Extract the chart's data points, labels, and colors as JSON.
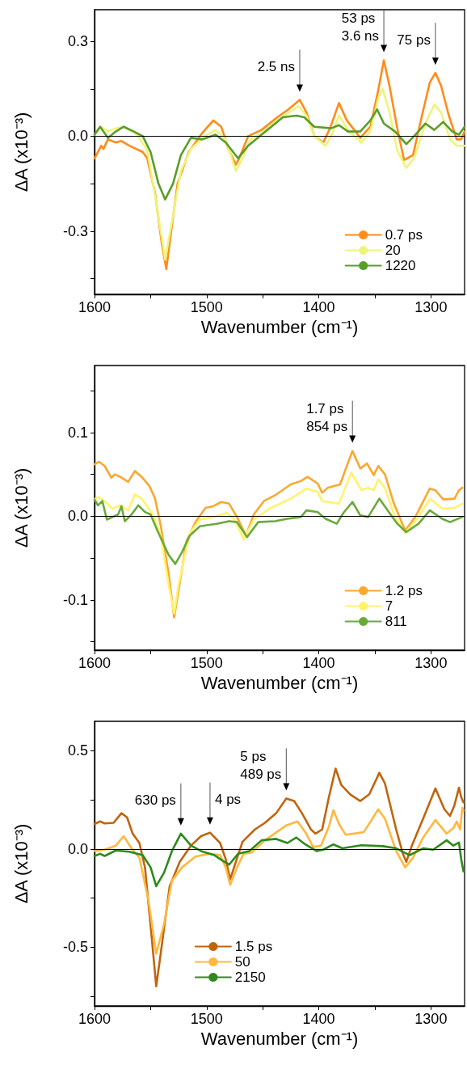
{
  "chart_data": [
    {
      "type": "line",
      "xlabel": "Wavenumber (cm⁻¹)",
      "ylabel": "ΔA (x10⁻³)",
      "xlim": [
        1600,
        1270
      ],
      "ylim": [
        -0.5,
        0.4
      ],
      "xticks": [
        1600,
        {
          "value": 1550,
          "label": null
        },
        1500,
        {
          "value": 1450,
          "label": null
        },
        1400,
        {
          "value": 1350,
          "label": null
        },
        1300
      ],
      "yticks": [
        {
          "value": -0.45,
          "label": null
        },
        -0.3,
        {
          "value": -0.15,
          "label": null
        },
        {
          "value": 0,
          "label": "0.0"
        },
        {
          "value": 0.15,
          "label": null
        },
        0.3
      ],
      "legend": "bottom right",
      "marker": "none",
      "line_style": "solid",
      "ref_lines": [
        {
          "axis": "y",
          "value": 0,
          "color": "#000000"
        }
      ],
      "annotations": [
        {
          "text": "2.5 ns",
          "x": 1417,
          "y": 0.115
        },
        {
          "text": "53 ps\n3.6 ns",
          "x": 1342,
          "y": 0.24
        },
        {
          "text": "75 ps",
          "x": 1296,
          "y": 0.2
        }
      ],
      "series": [
        {
          "name": "0.7 ps",
          "color": "#ff8c1a",
          "x": [
            1600,
            1594,
            1592,
            1588,
            1581,
            1576,
            1569,
            1557,
            1553,
            1546,
            1540,
            1536,
            1532,
            1526,
            1516,
            1504,
            1494,
            1487,
            1480,
            1474,
            1471,
            1463,
            1451,
            1437,
            1427,
            1417,
            1411,
            1404,
            1396,
            1390,
            1382,
            1375,
            1363,
            1354,
            1347,
            1342,
            1337,
            1330,
            1324,
            1316,
            1308,
            1301,
            1296,
            1291,
            1284,
            1277,
            1273,
            1270
          ],
          "values": [
            -0.07,
            -0.03,
            -0.04,
            -0.01,
            -0.02,
            -0.015,
            -0.03,
            -0.05,
            -0.07,
            -0.18,
            -0.34,
            -0.42,
            -0.31,
            -0.15,
            -0.05,
            0.01,
            0.05,
            0.03,
            -0.045,
            -0.09,
            -0.07,
            0.0,
            0.02,
            0.06,
            0.085,
            0.115,
            0.075,
            0.0,
            -0.02,
            0.025,
            0.105,
            0.05,
            -0.005,
            0.03,
            0.145,
            0.24,
            0.16,
            0.025,
            -0.075,
            -0.06,
            0.065,
            0.17,
            0.2,
            0.16,
            0.065,
            -0.01,
            -0.01,
            0.015
          ]
        },
        {
          "name": "20",
          "color": "#eef57a",
          "x": [
            1600,
            1594,
            1588,
            1581,
            1574,
            1562,
            1553,
            1545,
            1537,
            1530,
            1523,
            1514,
            1502,
            1492,
            1483,
            1474,
            1468,
            1461,
            1451,
            1437,
            1418,
            1411,
            1404,
            1394,
            1389,
            1382,
            1373,
            1362,
            1354,
            1347,
            1343,
            1337,
            1330,
            1322,
            1315,
            1305,
            1297,
            1291,
            1283,
            1277,
            1270
          ],
          "values": [
            0.005,
            0.03,
            0.015,
            0.025,
            0.03,
            0.005,
            -0.045,
            -0.21,
            -0.39,
            -0.25,
            -0.11,
            -0.04,
            0.0,
            0.02,
            -0.01,
            -0.11,
            -0.07,
            -0.01,
            0.01,
            0.05,
            0.095,
            0.065,
            0.0,
            -0.03,
            0.0,
            0.065,
            0.015,
            -0.02,
            0.015,
            0.12,
            0.15,
            0.075,
            -0.045,
            -0.1,
            -0.07,
            0.04,
            0.1,
            0.075,
            -0.01,
            -0.03,
            -0.03
          ]
        },
        {
          "name": "1220",
          "color": "#5a9e2a",
          "x": [
            1600,
            1595,
            1588,
            1581,
            1574,
            1565,
            1557,
            1550,
            1543,
            1537,
            1530,
            1523,
            1514,
            1504,
            1492,
            1483,
            1472,
            1463,
            1451,
            1432,
            1420,
            1413,
            1404,
            1389,
            1382,
            1374,
            1363,
            1354,
            1348,
            1342,
            1332,
            1322,
            1315,
            1305,
            1297,
            1289,
            1281,
            1275,
            1270
          ],
          "values": [
            0.005,
            0.03,
            -0.005,
            0.015,
            0.03,
            0.015,
            0.0,
            -0.05,
            -0.15,
            -0.2,
            -0.15,
            -0.06,
            -0.005,
            -0.01,
            0.005,
            -0.02,
            -0.07,
            -0.03,
            0.005,
            0.06,
            0.065,
            0.06,
            0.03,
            0.025,
            0.035,
            0.015,
            0.015,
            0.05,
            0.085,
            0.04,
            0.015,
            -0.025,
            0.0,
            0.04,
            0.02,
            0.045,
            0.015,
            0.005,
            0.03
          ]
        }
      ]
    },
    {
      "type": "line",
      "xlabel": "Wavenumber (cm⁻¹)",
      "ylabel": "ΔA (x10⁻³)",
      "xlim": [
        1600,
        1270
      ],
      "ylim": [
        -0.16,
        0.18
      ],
      "xticks": [
        1600,
        {
          "value": 1550,
          "label": null
        },
        1500,
        {
          "value": 1450,
          "label": null
        },
        1400,
        {
          "value": 1350,
          "label": null
        },
        1300
      ],
      "yticks": [
        {
          "value": -0.15,
          "label": null
        },
        -0.1,
        {
          "value": -0.05,
          "label": null
        },
        {
          "value": 0,
          "label": "0.0"
        },
        {
          "value": 0.05,
          "label": null
        },
        0.1,
        {
          "value": 0.15,
          "label": null
        }
      ],
      "legend": "bottom right",
      "marker": "none",
      "line_style": "solid",
      "ref_lines": [
        {
          "axis": "y",
          "value": 0,
          "color": "#000000"
        }
      ],
      "annotations": [
        {
          "text": "1.7 ps\n854 ps",
          "x": 1370,
          "y": 0.078
        }
      ],
      "series": [
        {
          "name": "1.2 ps",
          "color": "#f9a832",
          "x": [
            1600,
            1596,
            1591,
            1585,
            1582,
            1577,
            1570,
            1564,
            1558,
            1551,
            1546,
            1541,
            1534,
            1529,
            1525,
            1518,
            1510,
            1501,
            1494,
            1487,
            1480,
            1473,
            1465,
            1458,
            1449,
            1439,
            1425,
            1416,
            1410,
            1401,
            1397,
            1392,
            1381,
            1375,
            1370,
            1363,
            1357,
            1351,
            1347,
            1341,
            1333,
            1323,
            1314,
            1301,
            1296,
            1289,
            1279,
            1275,
            1272
          ],
          "values": [
            0.062,
            0.065,
            0.06,
            0.046,
            0.05,
            0.047,
            0.041,
            0.054,
            0.047,
            0.036,
            0.021,
            -0.011,
            -0.068,
            -0.121,
            -0.088,
            -0.03,
            -0.007,
            0.01,
            0.012,
            0.017,
            0.015,
            -0.001,
            -0.023,
            0.002,
            0.018,
            0.025,
            0.038,
            0.042,
            0.047,
            0.039,
            0.028,
            0.034,
            0.038,
            0.06,
            0.078,
            0.057,
            0.063,
            0.049,
            0.06,
            0.05,
            0.015,
            -0.017,
            -0.001,
            0.033,
            0.031,
            0.02,
            0.021,
            0.031,
            0.034
          ]
        },
        {
          "name": "7",
          "color": "#fff36e",
          "x": [
            1600,
            1597,
            1591,
            1584,
            1577,
            1570,
            1564,
            1558,
            1548,
            1541,
            1534,
            1529,
            1525,
            1515,
            1506,
            1494,
            1482,
            1475,
            1467,
            1458,
            1444,
            1425,
            1411,
            1401,
            1397,
            1382,
            1371,
            1362,
            1356,
            1351,
            1347,
            1341,
            1333,
            1323,
            1311,
            1301,
            1290,
            1279,
            1272
          ],
          "values": [
            0.02,
            0.023,
            0.018,
            0.009,
            0.013,
            0.007,
            0.026,
            0.021,
            0.002,
            -0.023,
            -0.081,
            -0.116,
            -0.081,
            -0.02,
            -0.004,
            -0.001,
            0.004,
            -0.004,
            -0.028,
            -0.004,
            0.009,
            0.021,
            0.033,
            0.029,
            0.018,
            0.015,
            0.052,
            0.031,
            0.034,
            0.031,
            0.044,
            0.034,
            0.002,
            -0.02,
            -0.001,
            0.021,
            0.009,
            0.01,
            0.015
          ]
        },
        {
          "name": "811",
          "color": "#6aaa3a",
          "x": [
            1600,
            1597,
            1593,
            1589,
            1579,
            1576,
            1573,
            1567,
            1561,
            1555,
            1550,
            1544,
            1534,
            1528,
            1522,
            1515,
            1506,
            1491,
            1480,
            1473,
            1464,
            1454,
            1439,
            1428,
            1416,
            1411,
            1401,
            1394,
            1384,
            1378,
            1370,
            1363,
            1356,
            1346,
            1337,
            1330,
            1322,
            1311,
            1301,
            1290,
            1283,
            1272
          ],
          "values": [
            0.02,
            0.013,
            0.018,
            -0.004,
            0.002,
            0.012,
            -0.006,
            0.002,
            0.013,
            0.005,
            0.002,
            -0.017,
            -0.046,
            -0.057,
            -0.043,
            -0.023,
            -0.012,
            -0.009,
            -0.006,
            -0.007,
            -0.025,
            -0.007,
            -0.006,
            -0.003,
            -0.001,
            0.007,
            0.005,
            -0.003,
            -0.009,
            0.004,
            0.017,
            0.001,
            -0.001,
            0.021,
            0.004,
            -0.009,
            -0.019,
            -0.009,
            0.007,
            -0.003,
            -0.007,
            -0.001
          ]
        }
      ]
    },
    {
      "type": "line",
      "xlabel": "Wavenumber (cm⁻¹)",
      "ylabel": "ΔA (x10⁻³)",
      "xlim": [
        1600,
        1270
      ],
      "ylim": [
        -0.8,
        0.65
      ],
      "xticks": [
        1600,
        {
          "value": 1550,
          "label": null
        },
        1500,
        {
          "value": 1450,
          "label": null
        },
        1400,
        {
          "value": 1350,
          "label": null
        },
        1300
      ],
      "yticks": [
        {
          "value": -0.75,
          "label": null
        },
        -0.5,
        {
          "value": -0.25,
          "label": null
        },
        {
          "value": 0,
          "label": "0.0"
        },
        {
          "value": 0.25,
          "label": null
        },
        0.5
      ],
      "legend": "bottom",
      "marker": "none",
      "line_style": "solid",
      "ref_lines": [
        {
          "axis": "y",
          "value": 0,
          "color": "#000000"
        }
      ],
      "annotations": [
        {
          "text": "630 ps",
          "x": 1523,
          "y": 0.078
        },
        {
          "text": "4 ps",
          "x": 1497,
          "y": 0.083
        },
        {
          "text": "5 ps\n489 ps",
          "x": 1429,
          "y": 0.257
        }
      ],
      "series": [
        {
          "name": "1.5 ps",
          "color": "#c0650e",
          "x": [
            1600,
            1595,
            1591,
            1583,
            1576,
            1571,
            1566,
            1560,
            1555,
            1549,
            1545,
            1541,
            1533,
            1524,
            1514,
            1505,
            1497,
            1488,
            1483,
            1479,
            1474,
            1468,
            1457,
            1448,
            1438,
            1429,
            1422,
            1415,
            1407,
            1403,
            1397,
            1391,
            1385,
            1380,
            1372,
            1363,
            1355,
            1346,
            1341,
            1331,
            1325,
            1322,
            1317,
            1307,
            1296,
            1288,
            1283,
            1279,
            1275,
            1273,
            1271
          ],
          "values": [
            0.127,
            0.14,
            0.13,
            0.133,
            0.182,
            0.161,
            0.078,
            0.03,
            -0.094,
            -0.451,
            -0.7,
            -0.534,
            -0.19,
            -0.066,
            0.017,
            0.065,
            0.083,
            0.03,
            -0.052,
            -0.155,
            -0.066,
            0.037,
            0.099,
            0.133,
            0.182,
            0.257,
            0.244,
            0.182,
            0.099,
            0.078,
            0.099,
            0.264,
            0.409,
            0.326,
            0.278,
            0.244,
            0.278,
            0.388,
            0.333,
            0.099,
            -0.025,
            -0.066,
            0.017,
            0.154,
            0.308,
            0.202,
            0.168,
            0.223,
            0.312,
            0.264,
            0.237
          ]
        },
        {
          "name": "50",
          "color": "#ffb840",
          "x": [
            1600,
            1591,
            1581,
            1574,
            1567,
            1560,
            1552,
            1545,
            1538,
            1531,
            1522,
            1510,
            1498,
            1488,
            1483,
            1479,
            1473,
            1467,
            1460,
            1448,
            1429,
            1419,
            1412,
            1405,
            1398,
            1391,
            1387,
            1382,
            1376,
            1360,
            1353,
            1347,
            1341,
            1331,
            1323,
            1316,
            1307,
            1296,
            1286,
            1280,
            1277,
            1274,
            1272,
            1271
          ],
          "values": [
            -0.011,
            -0.004,
            0.017,
            0.065,
            0.003,
            -0.045,
            -0.259,
            -0.534,
            -0.382,
            -0.162,
            -0.094,
            -0.039,
            -0.025,
            -0.032,
            -0.094,
            -0.183,
            -0.094,
            -0.025,
            -0.018,
            0.044,
            0.12,
            0.14,
            0.085,
            0.01,
            0.017,
            0.113,
            0.198,
            0.127,
            0.072,
            0.085,
            0.147,
            0.202,
            0.154,
            -0.011,
            -0.094,
            -0.045,
            0.058,
            0.147,
            0.078,
            0.106,
            0.14,
            0.099,
            0.209,
            0.195
          ]
        },
        {
          "name": "2150",
          "color": "#2e8a1c",
          "x": [
            1600,
            1595,
            1591,
            1581,
            1569,
            1557,
            1550,
            1545,
            1538,
            1531,
            1523,
            1514,
            1505,
            1493,
            1486,
            1480,
            1472,
            1462,
            1451,
            1438,
            1428,
            1420,
            1412,
            1402,
            1396,
            1387,
            1379,
            1362,
            1343,
            1331,
            1319,
            1307,
            1298,
            1286,
            1280,
            1275,
            1273,
            1271
          ],
          "values": [
            -0.036,
            -0.025,
            -0.036,
            -0.008,
            -0.014,
            -0.032,
            -0.094,
            -0.19,
            -0.121,
            -0.011,
            0.078,
            0.017,
            -0.011,
            -0.032,
            -0.059,
            -0.08,
            -0.025,
            -0.011,
            0.044,
            0.051,
            0.03,
            0.058,
            0.023,
            -0.011,
            -0.004,
            0.023,
            0.003,
            0.019,
            0.014,
            0.003,
            -0.032,
            0.003,
            -0.004,
            0.044,
            0.017,
            0.033,
            -0.052,
            -0.114
          ]
        }
      ]
    }
  ]
}
